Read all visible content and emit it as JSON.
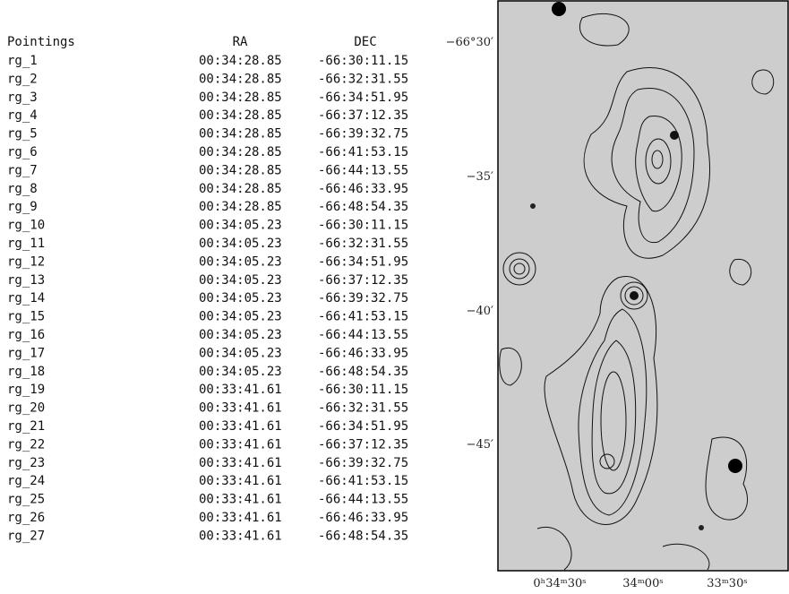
{
  "table": {
    "headers": [
      "Pointings",
      "RA",
      "DEC"
    ],
    "rows": [
      [
        "rg_1",
        "00:34:28.85",
        "-66:30:11.15"
      ],
      [
        "rg_2",
        "00:34:28.85",
        "-66:32:31.55"
      ],
      [
        "rg_3",
        "00:34:28.85",
        "-66:34:51.95"
      ],
      [
        "rg_4",
        "00:34:28.85",
        "-66:37:12.35"
      ],
      [
        "rg_5",
        "00:34:28.85",
        "-66:39:32.75"
      ],
      [
        "rg_6",
        "00:34:28.85",
        "-66:41:53.15"
      ],
      [
        "rg_7",
        "00:34:28.85",
        "-66:44:13.55"
      ],
      [
        "rg_8",
        "00:34:28.85",
        "-66:46:33.95"
      ],
      [
        "rg_9",
        "00:34:28.85",
        "-66:48:54.35"
      ],
      [
        "rg_10",
        "00:34:05.23",
        "-66:30:11.15"
      ],
      [
        "rg_11",
        "00:34:05.23",
        "-66:32:31.55"
      ],
      [
        "rg_12",
        "00:34:05.23",
        "-66:34:51.95"
      ],
      [
        "rg_13",
        "00:34:05.23",
        "-66:37:12.35"
      ],
      [
        "rg_14",
        "00:34:05.23",
        "-66:39:32.75"
      ],
      [
        "rg_15",
        "00:34:05.23",
        "-66:41:53.15"
      ],
      [
        "rg_16",
        "00:34:05.23",
        "-66:44:13.55"
      ],
      [
        "rg_17",
        "00:34:05.23",
        "-66:46:33.95"
      ],
      [
        "rg_18",
        "00:34:05.23",
        "-66:48:54.35"
      ],
      [
        "rg_19",
        "00:33:41.61",
        "-66:30:11.15"
      ],
      [
        "rg_20",
        "00:33:41.61",
        "-66:32:31.55"
      ],
      [
        "rg_21",
        "00:33:41.61",
        "-66:34:51.95"
      ],
      [
        "rg_22",
        "00:33:41.61",
        "-66:37:12.35"
      ],
      [
        "rg_23",
        "00:33:41.61",
        "-66:39:32.75"
      ],
      [
        "rg_24",
        "00:33:41.61",
        "-66:41:53.15"
      ],
      [
        "rg_25",
        "00:33:41.61",
        "-66:44:13.55"
      ],
      [
        "rg_26",
        "00:33:41.61",
        "-66:46:33.95"
      ],
      [
        "rg_27",
        "00:33:41.61",
        "-66:48:54.35"
      ]
    ]
  },
  "image": {
    "y_labels": [
      "−66°30′",
      "−35′",
      "−40′",
      "−45′"
    ],
    "x_labels": [
      "0ʰ34ᵐ30ˢ",
      "34ᵐ00ˢ",
      "33ᵐ30ˢ"
    ]
  }
}
